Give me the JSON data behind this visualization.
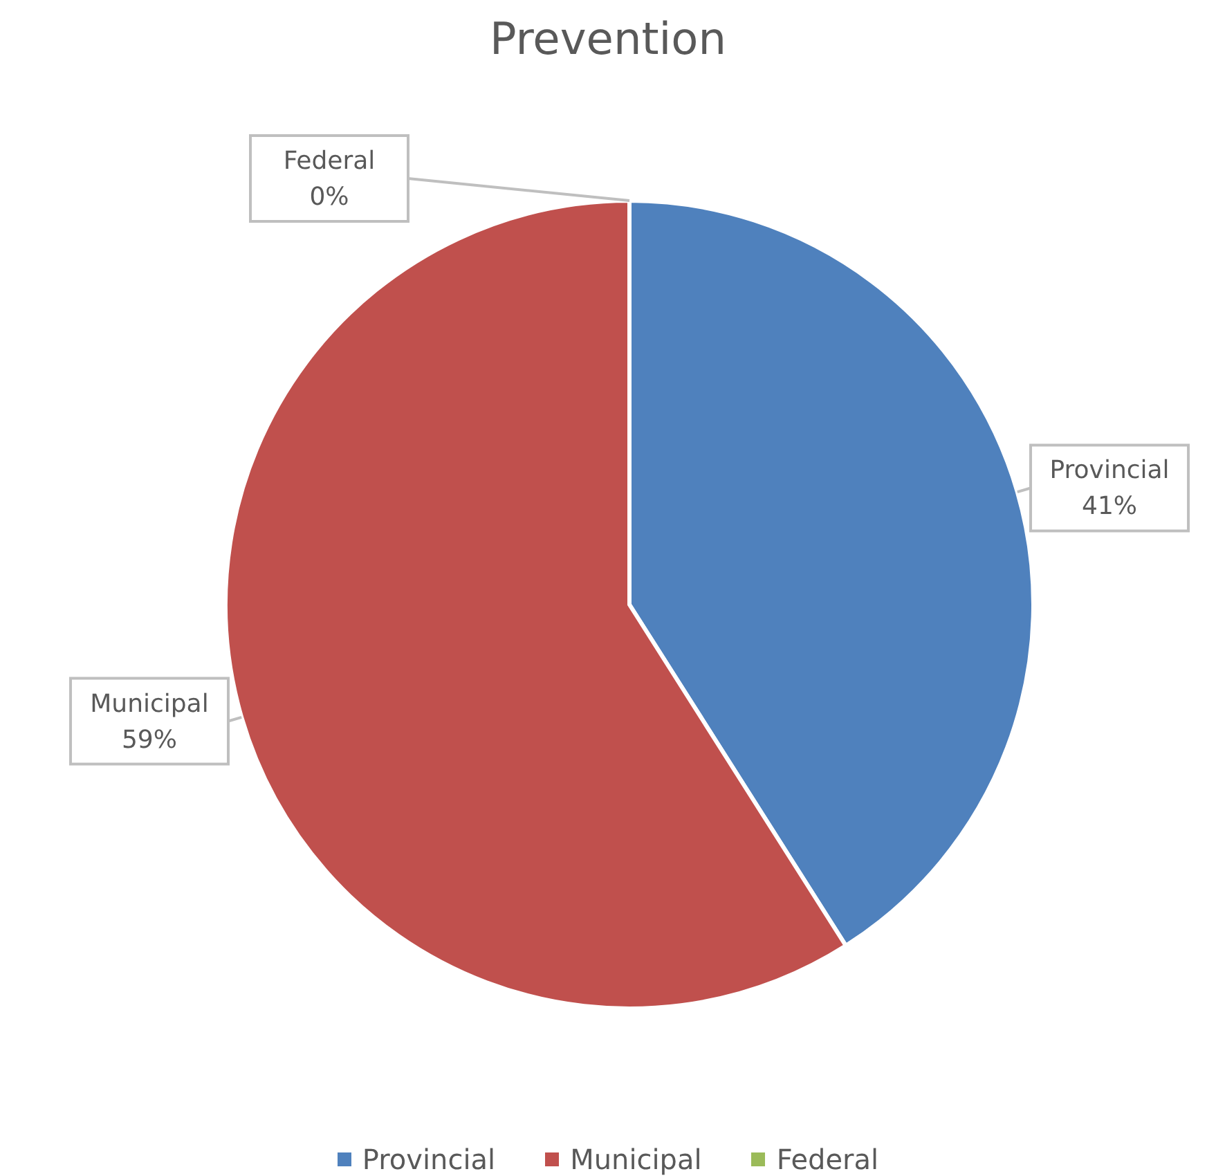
{
  "chart_data": {
    "type": "pie",
    "title": "Prevention",
    "categories": [
      "Provincial",
      "Municipal",
      "Federal"
    ],
    "values": [
      41,
      59,
      0
    ],
    "colors": [
      "#4f81bd",
      "#c0504d",
      "#9bbb59"
    ],
    "value_labels": [
      "41%",
      "59%",
      "0%"
    ],
    "legend": "bottom"
  }
}
